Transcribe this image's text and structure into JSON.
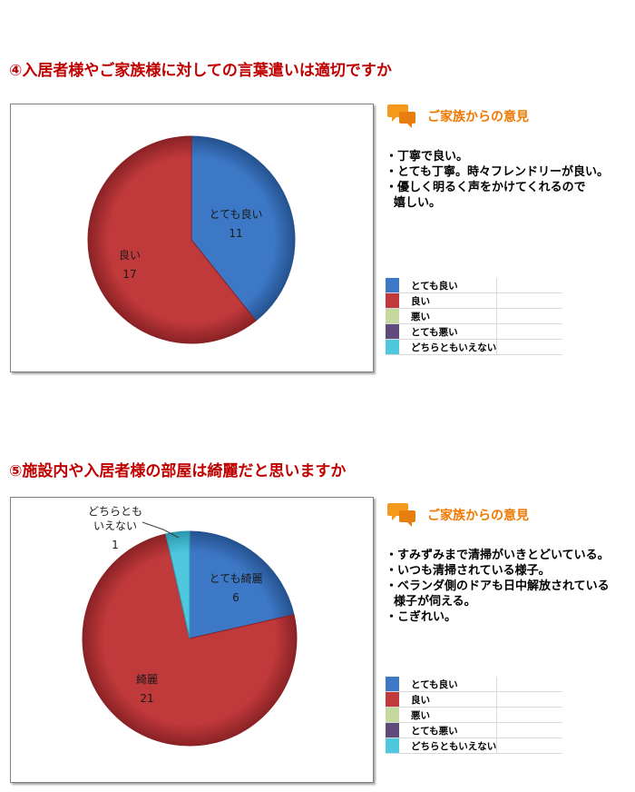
{
  "sections": [
    {
      "title": "④入居者様やご家族様に対しての言葉遣いは適切ですか",
      "feedback_header": "ご家族からの意見",
      "feedback": [
        "・丁寧で良い。",
        "・とても丁寧。時々フレンドリーが良い。",
        "・優しく明るく声をかけてくれるので",
        "  嬉しい。"
      ],
      "legend": [
        "とても良い",
        "良い",
        "悪い",
        "とても悪い",
        "どちらともいえない"
      ]
    },
    {
      "title": "⑤施設内や入居者様の部屋は綺麗だと思いますか",
      "feedback_header": "ご家族からの意見",
      "feedback": [
        "・すみずみまで清掃がいきとどいている。",
        "・いつも清掃されている様子。",
        "・ベランダ側のドアも日中解放されている",
        "  様子が伺える。",
        "・こぎれい。"
      ],
      "legend": [
        "とても良い",
        "良い",
        "悪い",
        "とても悪い",
        "どちらともいえない"
      ]
    }
  ],
  "colors": {
    "title": "#c00000",
    "feedback_header": "#f07800",
    "series": [
      "#3d78c6",
      "#c0393b",
      "#c5d99f",
      "#604a7b",
      "#4fc7dd"
    ],
    "series_dark": [
      "#25528f",
      "#8a2225",
      "#8fa86a",
      "#3f2f55",
      "#2a98ad"
    ]
  },
  "icons": {
    "feedback_header": "speech-bubbles-icon"
  },
  "chart_data": [
    {
      "type": "pie",
      "title": "④入居者様やご家族様に対しての言葉遣いは適切ですか",
      "slices": [
        {
          "label": "とても良い",
          "value": 11
        },
        {
          "label": "良い",
          "value": 17
        }
      ],
      "legend": [
        "とても良い",
        "良い",
        "悪い",
        "とても悪い",
        "どちらともいえない"
      ],
      "legend_placement": "right"
    },
    {
      "type": "pie",
      "title": "⑤施設内や入居者様の部屋は綺麗だと思いますか",
      "slices": [
        {
          "label": "とても綺麗",
          "value": 6
        },
        {
          "label": "綺麗",
          "value": 21
        },
        {
          "label": "どちらとも\nいえない",
          "value": 1
        }
      ],
      "legend": [
        "とても良い",
        "良い",
        "悪い",
        "とても悪い",
        "どちらともいえない"
      ],
      "legend_placement": "right"
    }
  ]
}
